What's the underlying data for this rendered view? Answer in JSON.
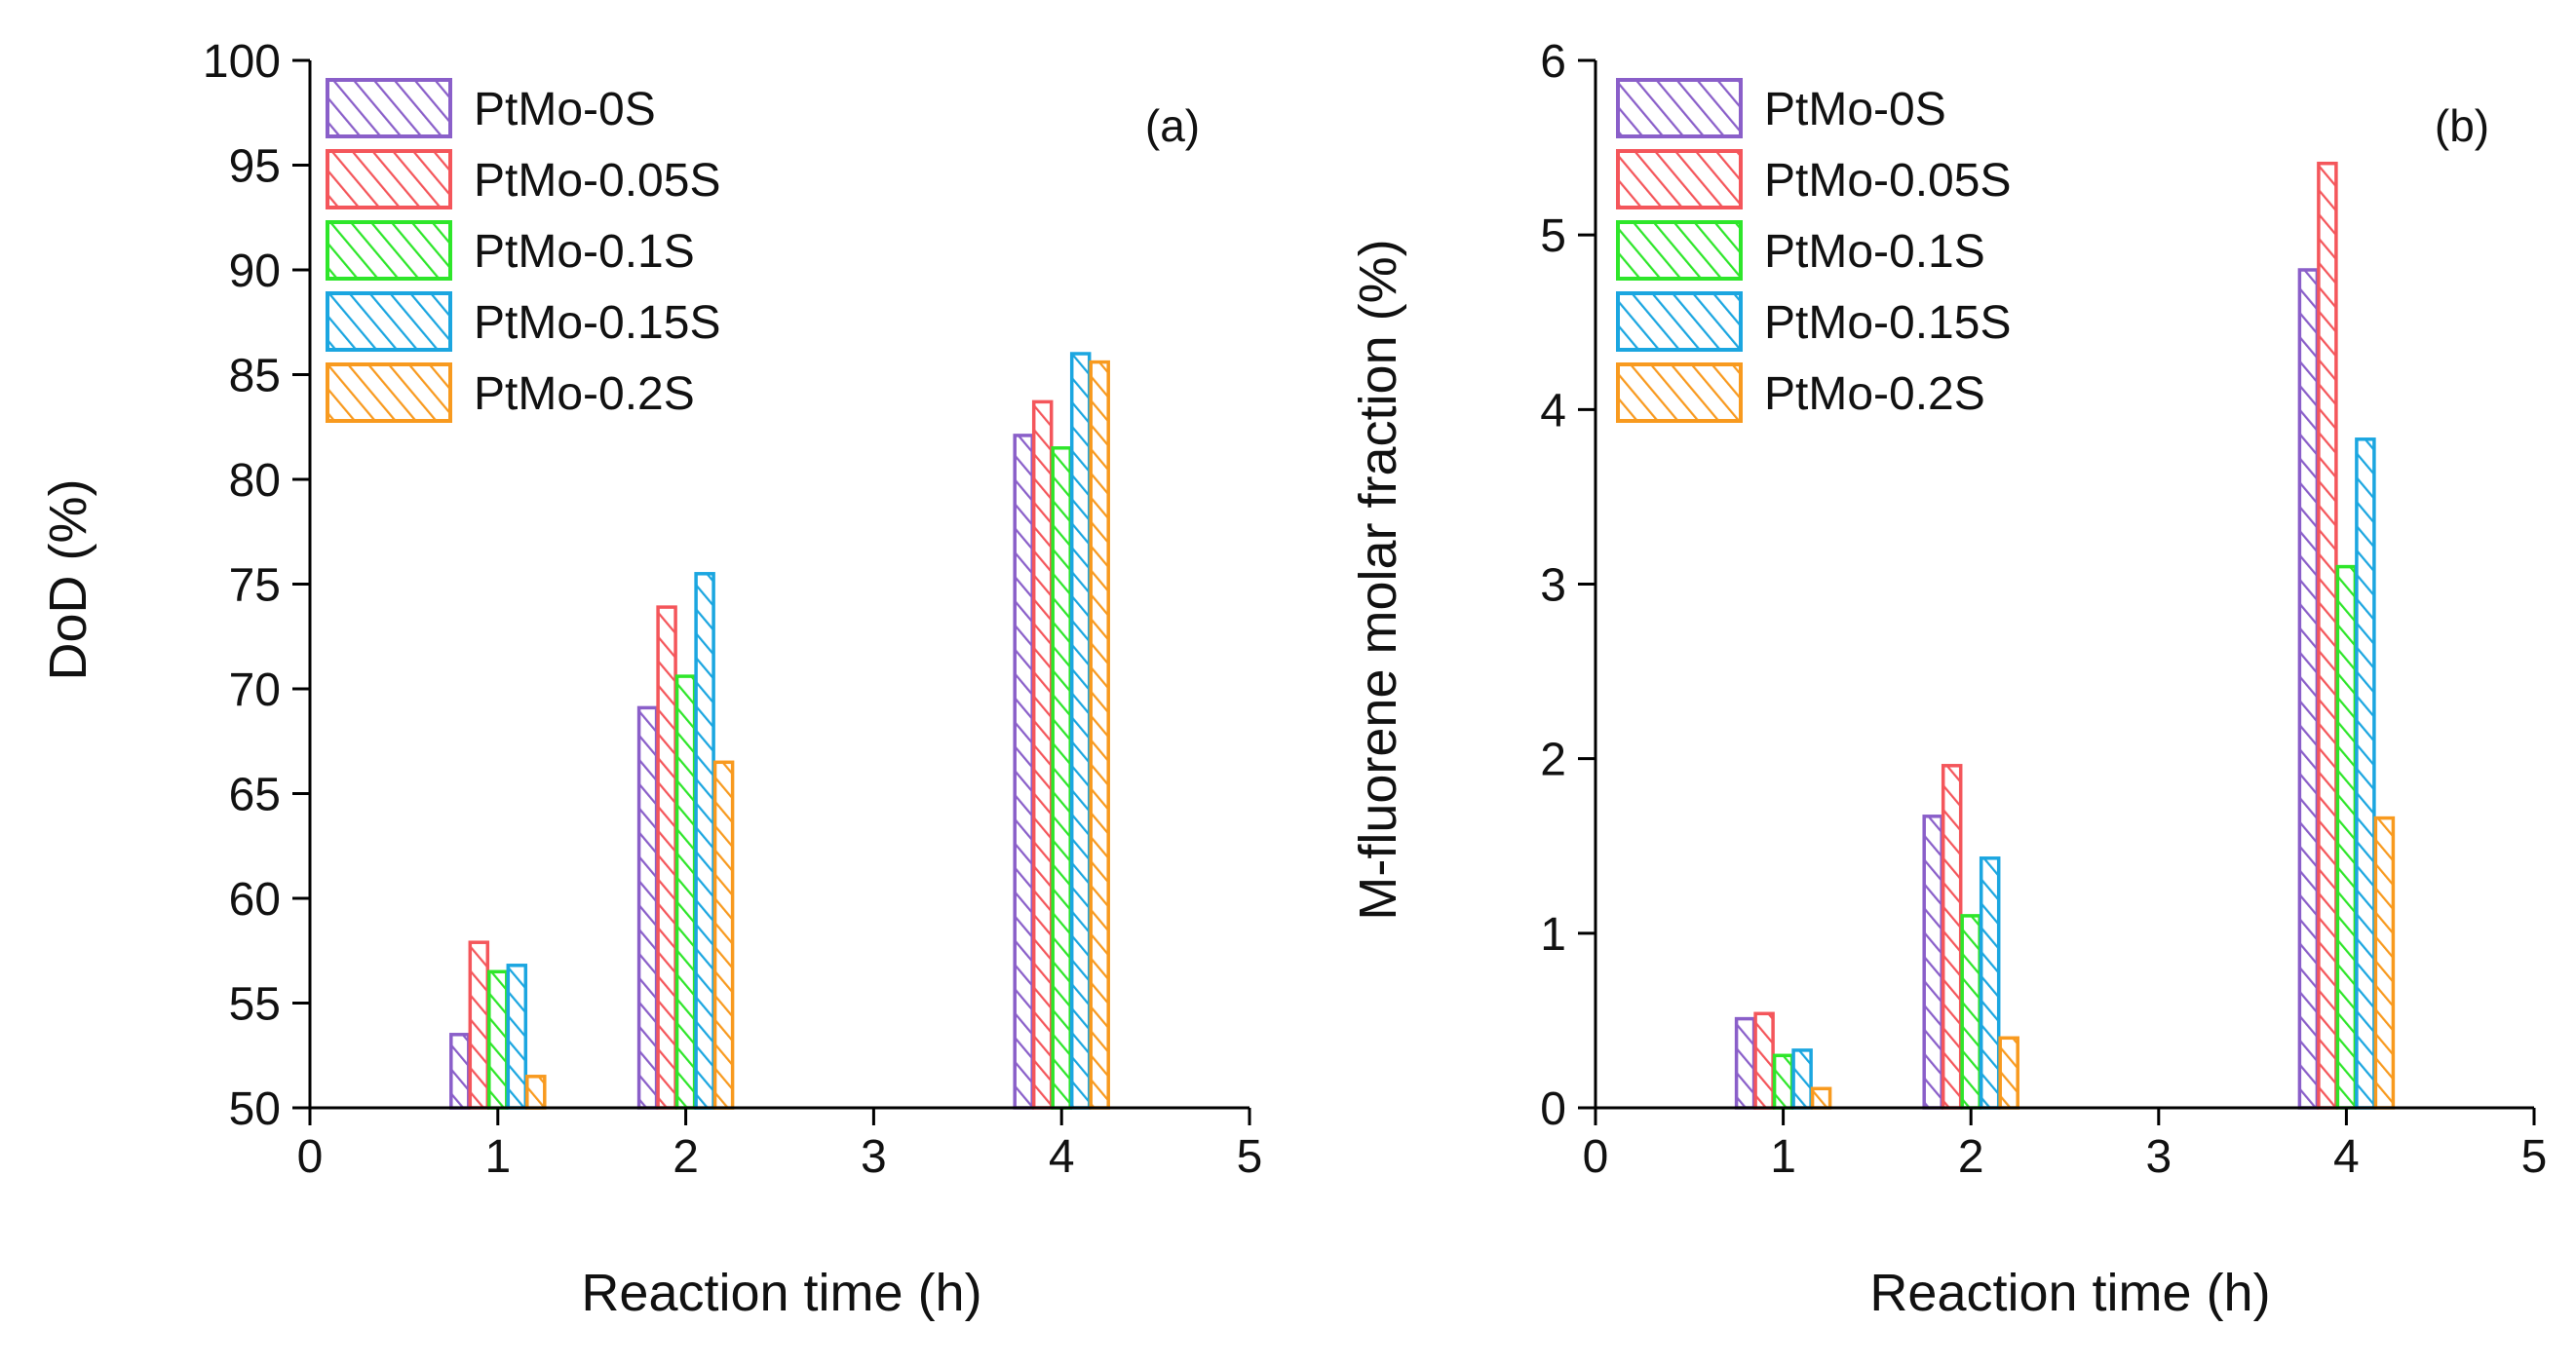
{
  "colors": {
    "PtMo-0S": "#8a5fc9",
    "PtMo-0.05S": "#f4565b",
    "PtMo-0.1S": "#2ee62a",
    "PtMo-0.15S": "#1ba6e0",
    "PtMo-0.2S": "#f89a1f",
    "axis": "#000000"
  },
  "chart_data": [
    {
      "type": "bar",
      "panel_label": "(a)",
      "title": "",
      "xlabel": "Reaction time (h)",
      "ylabel": "DoD (%)",
      "xlim": [
        0,
        5
      ],
      "ylim": [
        50,
        100
      ],
      "xticks": [
        "0",
        "1",
        "2",
        "3",
        "4",
        "5"
      ],
      "yticks": [
        "50",
        "55",
        "60",
        "65",
        "70",
        "75",
        "80",
        "85",
        "90",
        "95",
        "100"
      ],
      "x": [
        1,
        2,
        4
      ],
      "series": [
        {
          "name": "PtMo-0S",
          "values": [
            53.5,
            69.1,
            82.1
          ]
        },
        {
          "name": "PtMo-0.05S",
          "values": [
            57.9,
            73.9,
            83.7
          ]
        },
        {
          "name": "PtMo-0.1S",
          "values": [
            56.5,
            70.6,
            81.5
          ]
        },
        {
          "name": "PtMo-0.15S",
          "values": [
            56.8,
            75.5,
            86.0
          ]
        },
        {
          "name": "PtMo-0.2S",
          "values": [
            51.5,
            66.5,
            85.6
          ]
        }
      ],
      "legend_position": "top-left",
      "grid": false
    },
    {
      "type": "bar",
      "panel_label": "(b)",
      "title": "",
      "xlabel": "Reaction time (h)",
      "ylabel": "M-fluorene molar fraction (%)",
      "xlim": [
        0,
        5
      ],
      "ylim": [
        0,
        6
      ],
      "xticks": [
        "0",
        "1",
        "2",
        "3",
        "4",
        "5"
      ],
      "yticks": [
        "0",
        "1",
        "2",
        "3",
        "4",
        "5",
        "6"
      ],
      "x": [
        1,
        2,
        4
      ],
      "series": [
        {
          "name": "PtMo-0S",
          "values": [
            0.51,
            1.67,
            4.8
          ]
        },
        {
          "name": "PtMo-0.05S",
          "values": [
            0.54,
            1.96,
            5.41
          ]
        },
        {
          "name": "PtMo-0.1S",
          "values": [
            0.3,
            1.1,
            3.1
          ]
        },
        {
          "name": "PtMo-0.15S",
          "values": [
            0.33,
            1.43,
            3.83
          ]
        },
        {
          "name": "PtMo-0.2S",
          "values": [
            0.11,
            0.4,
            1.66
          ]
        }
      ],
      "legend_position": "top-left",
      "grid": false
    }
  ]
}
